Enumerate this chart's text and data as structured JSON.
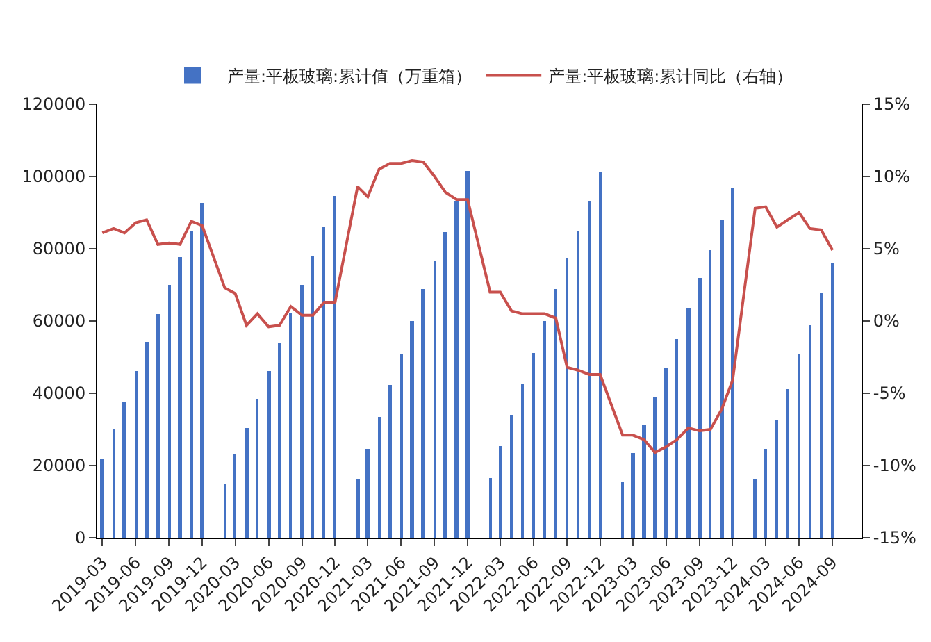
{
  "chart_data": {
    "type": "bar",
    "legend": "top",
    "x": [
      "2019-03",
      "2019-04",
      "2019-05",
      "2019-06",
      "2019-07",
      "2019-08",
      "2019-09",
      "2019-10",
      "2019-11",
      "2019-12",
      "2020-01",
      "2020-02",
      "2020-03",
      "2020-04",
      "2020-05",
      "2020-06",
      "2020-07",
      "2020-08",
      "2020-09",
      "2020-10",
      "2020-11",
      "2020-12",
      "2021-01",
      "2021-02",
      "2021-03",
      "2021-04",
      "2021-05",
      "2021-06",
      "2021-07",
      "2021-08",
      "2021-09",
      "2021-10",
      "2021-11",
      "2021-12",
      "2022-01",
      "2022-02",
      "2022-03",
      "2022-04",
      "2022-05",
      "2022-06",
      "2022-07",
      "2022-08",
      "2022-09",
      "2022-10",
      "2022-11",
      "2022-12",
      "2023-01",
      "2023-02",
      "2023-03",
      "2023-04",
      "2023-05",
      "2023-06",
      "2023-07",
      "2023-08",
      "2023-09",
      "2023-10",
      "2023-11",
      "2023-12",
      "2024-01",
      "2024-02",
      "2024-03",
      "2024-04",
      "2024-05",
      "2024-06",
      "2024-07",
      "2024-08",
      "2024-09"
    ],
    "series": [
      {
        "name": "产量:平板玻璃:累计值（万重箱）",
        "color": "#4472c4",
        "values": [
          21900,
          29900,
          37800,
          46000,
          54200,
          61800,
          69900,
          77700,
          84900,
          92800,
          null,
          14900,
          23000,
          30200,
          38300,
          46200,
          54000,
          62300,
          69900,
          78000,
          86300,
          94500,
          null,
          16000,
          24800,
          33300,
          42300,
          50800,
          59900,
          68900,
          76400,
          84500,
          93100,
          101600,
          null,
          16500,
          25300,
          33900,
          42800,
          51300,
          60100,
          68800,
          77300,
          84900,
          93100,
          101300,
          null,
          15200,
          23300,
          31200,
          38900,
          46900,
          55000,
          63300,
          72100,
          79500,
          88000,
          96800,
          null,
          16300,
          24800,
          32800,
          41300,
          50700,
          58900,
          67700,
          76100
        ]
      },
      {
        "name": "产量:平板玻璃:累计同比（右轴）",
        "type": "line",
        "axis": "y2",
        "color": "#c8504d",
        "values": [
          6.1,
          6.4,
          6.1,
          6.8,
          7.0,
          5.3,
          5.4,
          5.3,
          6.9,
          6.6,
          null,
          2.3,
          1.9,
          -0.3,
          0.5,
          -0.4,
          -0.3,
          1.0,
          0.4,
          0.4,
          1.3,
          1.3,
          null,
          9.3,
          8.6,
          10.5,
          10.9,
          10.9,
          11.1,
          11.0,
          10.0,
          8.9,
          8.4,
          8.4,
          null,
          2.0,
          2.0,
          0.7,
          0.5,
          0.5,
          0.5,
          0.2,
          -3.2,
          -3.4,
          -3.7,
          -3.7,
          null,
          -7.9,
          -7.9,
          -8.2,
          -9.1,
          -8.7,
          -8.2,
          -7.4,
          -7.6,
          -7.5,
          -6.1,
          -4.1,
          null,
          7.8,
          7.9,
          6.5,
          7.0,
          7.5,
          6.4,
          6.3,
          4.9
        ]
      }
    ],
    "xlim": [
      "2019-02-15",
      "2024-11-20"
    ],
    "xticks": [
      "2019-03",
      "2019-06",
      "2019-09",
      "2019-12",
      "2020-03",
      "2020-06",
      "2020-09",
      "2020-12",
      "2021-03",
      "2021-06",
      "2021-09",
      "2021-12",
      "2022-03",
      "2022-06",
      "2022-09",
      "2022-12",
      "2023-03",
      "2023-06",
      "2023-09",
      "2023-12",
      "2024-03",
      "2024-06",
      "2024-09"
    ],
    "ylim": [
      0,
      120000
    ],
    "yticks": [
      0,
      20000,
      40000,
      60000,
      80000,
      100000,
      120000
    ],
    "y2lim": [
      -15,
      15
    ],
    "y2ticks": [
      {
        "value": -15,
        "label": "-15%"
      },
      {
        "value": -10,
        "label": "-10%"
      },
      {
        "value": -5,
        "label": "-5%"
      },
      {
        "value": 0,
        "label": "0%"
      },
      {
        "value": 5,
        "label": "5%"
      },
      {
        "value": 10,
        "label": "10%"
      },
      {
        "value": 15,
        "label": "15%"
      }
    ]
  }
}
